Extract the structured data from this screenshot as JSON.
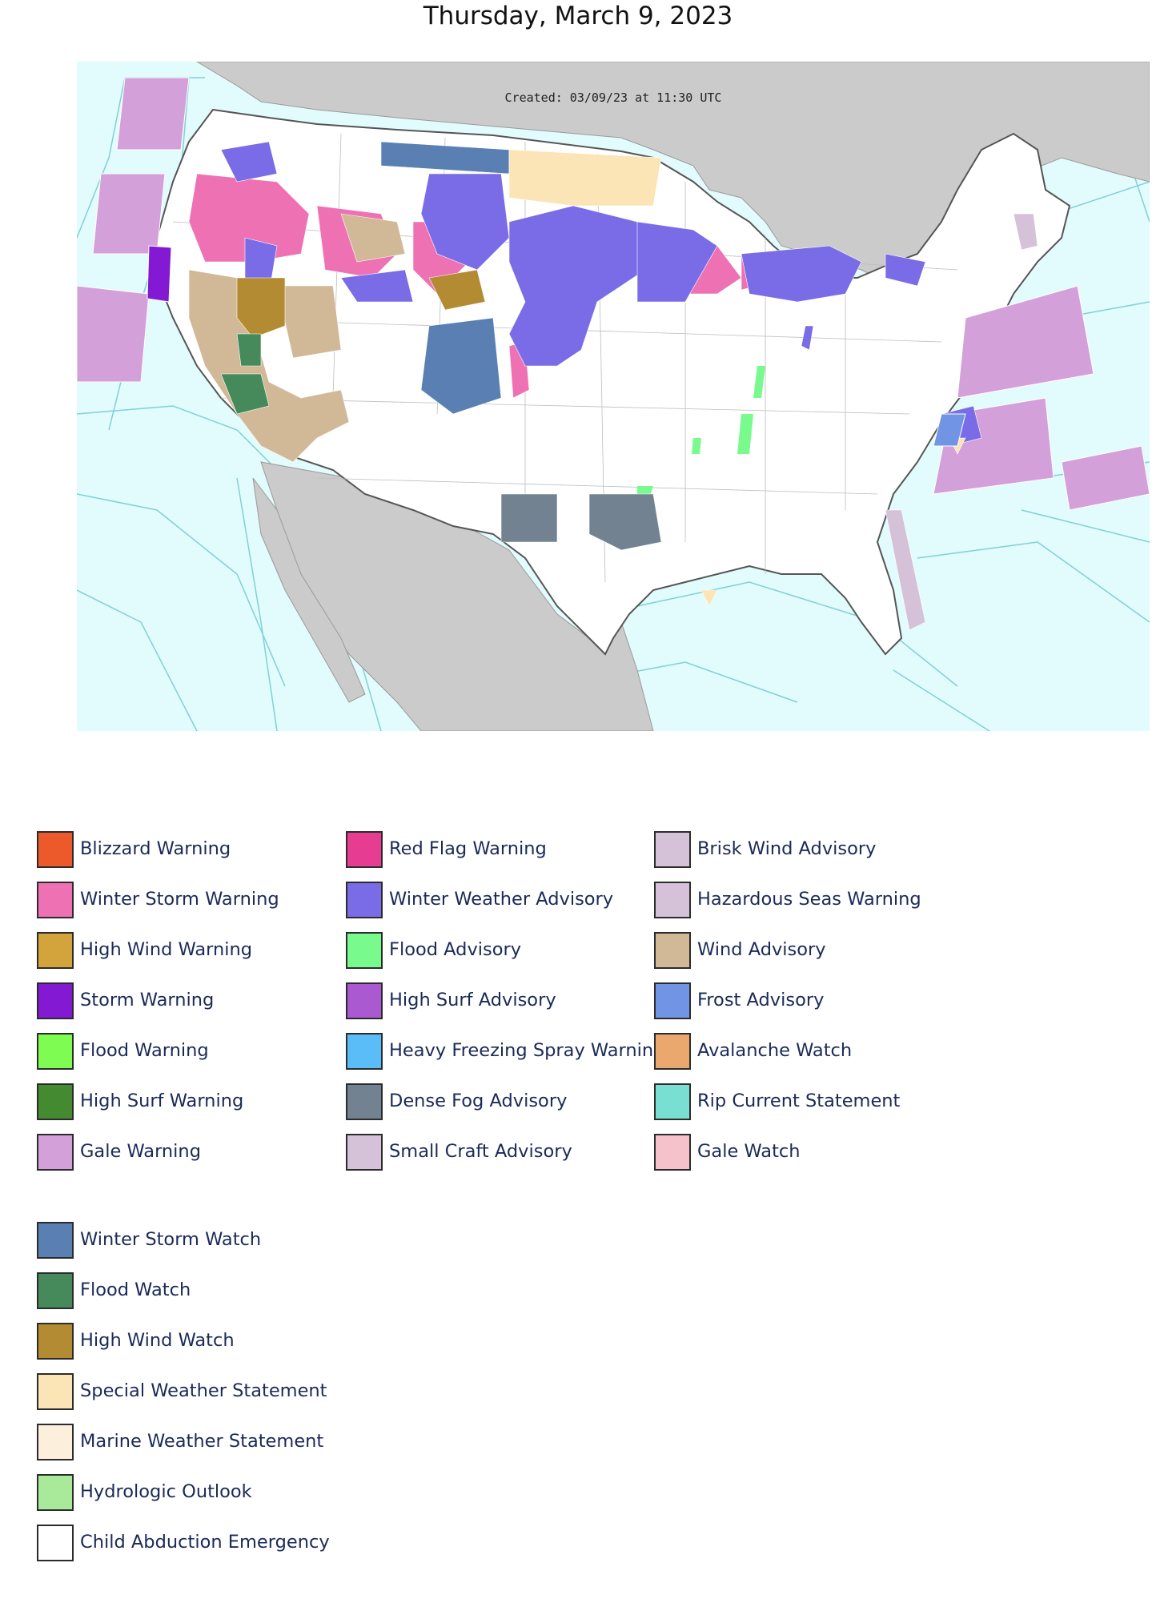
{
  "title": "Thursday, March 9, 2023",
  "map": {
    "created_text": "Created: 03/09/23 at 11:30 UTC",
    "colors": {
      "ocean": "#e2fbfc",
      "land_outside": "#cbcbcb",
      "land_us": "#ffffff",
      "marine_zone_line": "#7fd1d6",
      "county_line": "#9a9a9a"
    }
  },
  "legend": {
    "col1": [
      {
        "label": "Blizzard Warning",
        "color": "#ec5a2c"
      },
      {
        "label": "Winter Storm Warning",
        "color": "#ee72b3"
      },
      {
        "label": "High Wind Warning",
        "color": "#d4a43c"
      },
      {
        "label": "Storm Warning",
        "color": "#8419d4"
      },
      {
        "label": "Flood Warning",
        "color": "#7efc52"
      },
      {
        "label": "High Surf Warning",
        "color": "#448a30"
      },
      {
        "label": "Gale Warning",
        "color": "#d4a0da"
      }
    ],
    "col2": [
      {
        "label": "Red Flag Warning",
        "color": "#e63c92"
      },
      {
        "label": "Winter Weather Advisory",
        "color": "#7a6ce6"
      },
      {
        "label": "Flood Advisory",
        "color": "#78fb8c"
      },
      {
        "label": "High Surf Advisory",
        "color": "#aa59d0"
      },
      {
        "label": "Heavy Freezing Spray Warning",
        "color": "#5bbdf8"
      },
      {
        "label": "Dense Fog Advisory",
        "color": "#738291"
      },
      {
        "label": "Small Craft Advisory",
        "color": "#d5c2d9"
      }
    ],
    "col3": [
      {
        "label": "Brisk Wind Advisory",
        "color": "#d5c2d9"
      },
      {
        "label": "Hazardous Seas Warning",
        "color": "#d5c2d9"
      },
      {
        "label": "Wind Advisory",
        "color": "#d1b897"
      },
      {
        "label": "Frost Advisory",
        "color": "#7195e4"
      },
      {
        "label": "Avalanche Watch",
        "color": "#eaa86f"
      },
      {
        "label": "Rip Current Statement",
        "color": "#79dfd3"
      },
      {
        "label": "Gale Watch",
        "color": "#f5c1cb"
      }
    ],
    "col4": [
      {
        "label": "Winter Storm Watch",
        "color": "#5a80b3"
      },
      {
        "label": "Flood Watch",
        "color": "#468a5b"
      },
      {
        "label": "High Wind Watch",
        "color": "#b38b32"
      },
      {
        "label": "Special Weather Statement",
        "color": "#fbe4b6"
      },
      {
        "label": "Marine Weather Statement",
        "color": "#fcf0dc"
      },
      {
        "label": "Hydrologic Outlook",
        "color": "#a8ea9a"
      },
      {
        "label": "Child Abduction Emergency",
        "color": "#ffffff"
      }
    ]
  }
}
